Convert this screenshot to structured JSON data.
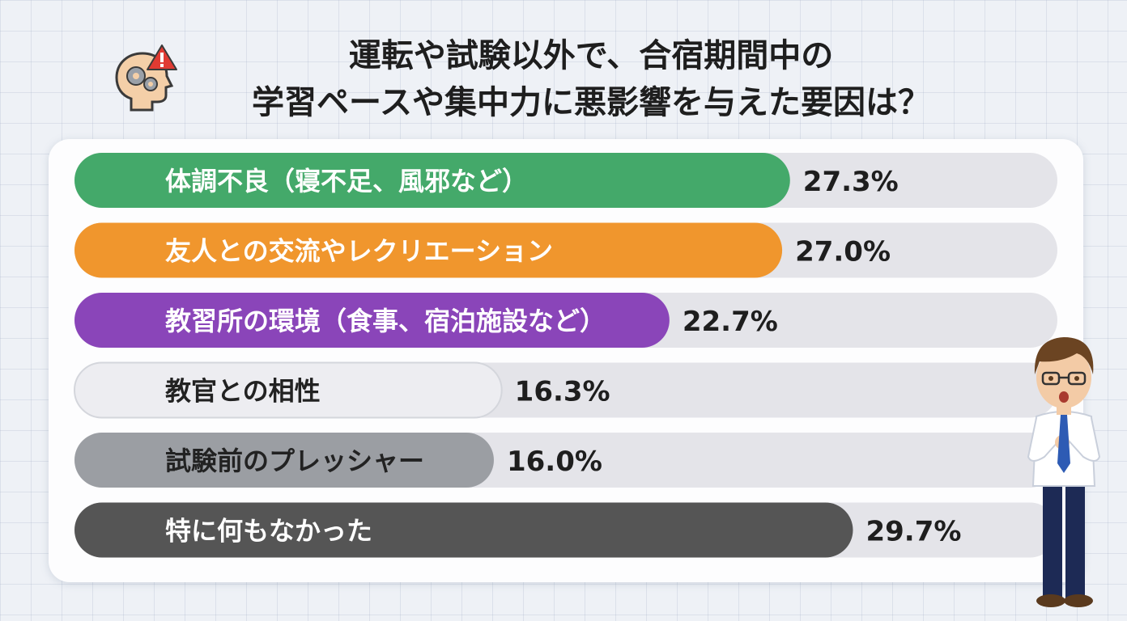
{
  "title": {
    "line1": "運転や試験以外で、合宿期間中の",
    "line2": "学習ペースや集中力に悪影響を与えた要因は？"
  },
  "icons": {
    "head": "head-gears-warning-icon",
    "character": "surprised-man-with-glasses"
  },
  "chart_data": {
    "type": "bar",
    "orientation": "horizontal",
    "categories": [
      "体調不良（寝不足、風邪など）",
      "友人との交流やレクリエーション",
      "教習所の環境（食事、宿泊施設など）",
      "教官との相性",
      "試験前のプレッシャー",
      "特に何もなかった"
    ],
    "values": [
      27.3,
      27.0,
      22.7,
      16.3,
      16.0,
      29.7
    ],
    "value_labels": [
      "27.3%",
      "27.0%",
      "22.7%",
      "16.3%",
      "16.0%",
      "29.7%"
    ],
    "colors": [
      "#44a96a",
      "#f0962d",
      "#8a45b9",
      "#ededf1",
      "#9b9ea3",
      "#555555"
    ],
    "label_colors": [
      "#ffffff",
      "#ffffff",
      "#ffffff",
      "#222222",
      "#222222",
      "#ffffff"
    ],
    "track_color": "#e4e4e9",
    "unit": "%",
    "xlim": [
      0,
      37.5
    ],
    "legend": "none",
    "grid": false
  }
}
